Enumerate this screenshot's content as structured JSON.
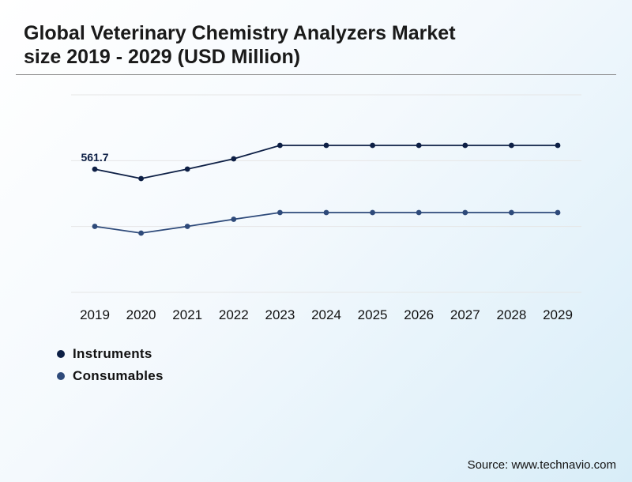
{
  "title_line1": "Global Veterinary Chemistry Analyzers Market",
  "title_line2": "size 2019 - 2029 (USD Million)",
  "source": "Source: www.technavio.com",
  "chart_data": {
    "type": "line",
    "title": "Global Veterinary Chemistry Analyzers Market size 2019 - 2029 (USD Million)",
    "xlabel": "",
    "ylabel": "",
    "x": [
      "2019",
      "2020",
      "2021",
      "2022",
      "2023",
      "2024",
      "2025",
      "2026",
      "2027",
      "2028",
      "2029"
    ],
    "ylim": [
      250,
      750
    ],
    "grid": true,
    "legend_position": "bottom-left",
    "series": [
      {
        "name": "Instruments",
        "color": "#0d1f45",
        "values": [
          561.7,
          538,
          562,
          588,
          622,
          622,
          622,
          622,
          622,
          622,
          622
        ],
        "labels": [
          "561.7",
          "",
          "",
          "",
          "",
          "",
          "",
          "",
          "",
          "",
          ""
        ]
      },
      {
        "name": "Consumables",
        "color": "#2e4a7a",
        "values": [
          417,
          400,
          417,
          435,
          452,
          452,
          452,
          452,
          452,
          452,
          452
        ],
        "labels": [
          "",
          "",
          "",
          "",
          "",
          "",
          "",
          "",
          "",
          "",
          ""
        ]
      }
    ]
  }
}
